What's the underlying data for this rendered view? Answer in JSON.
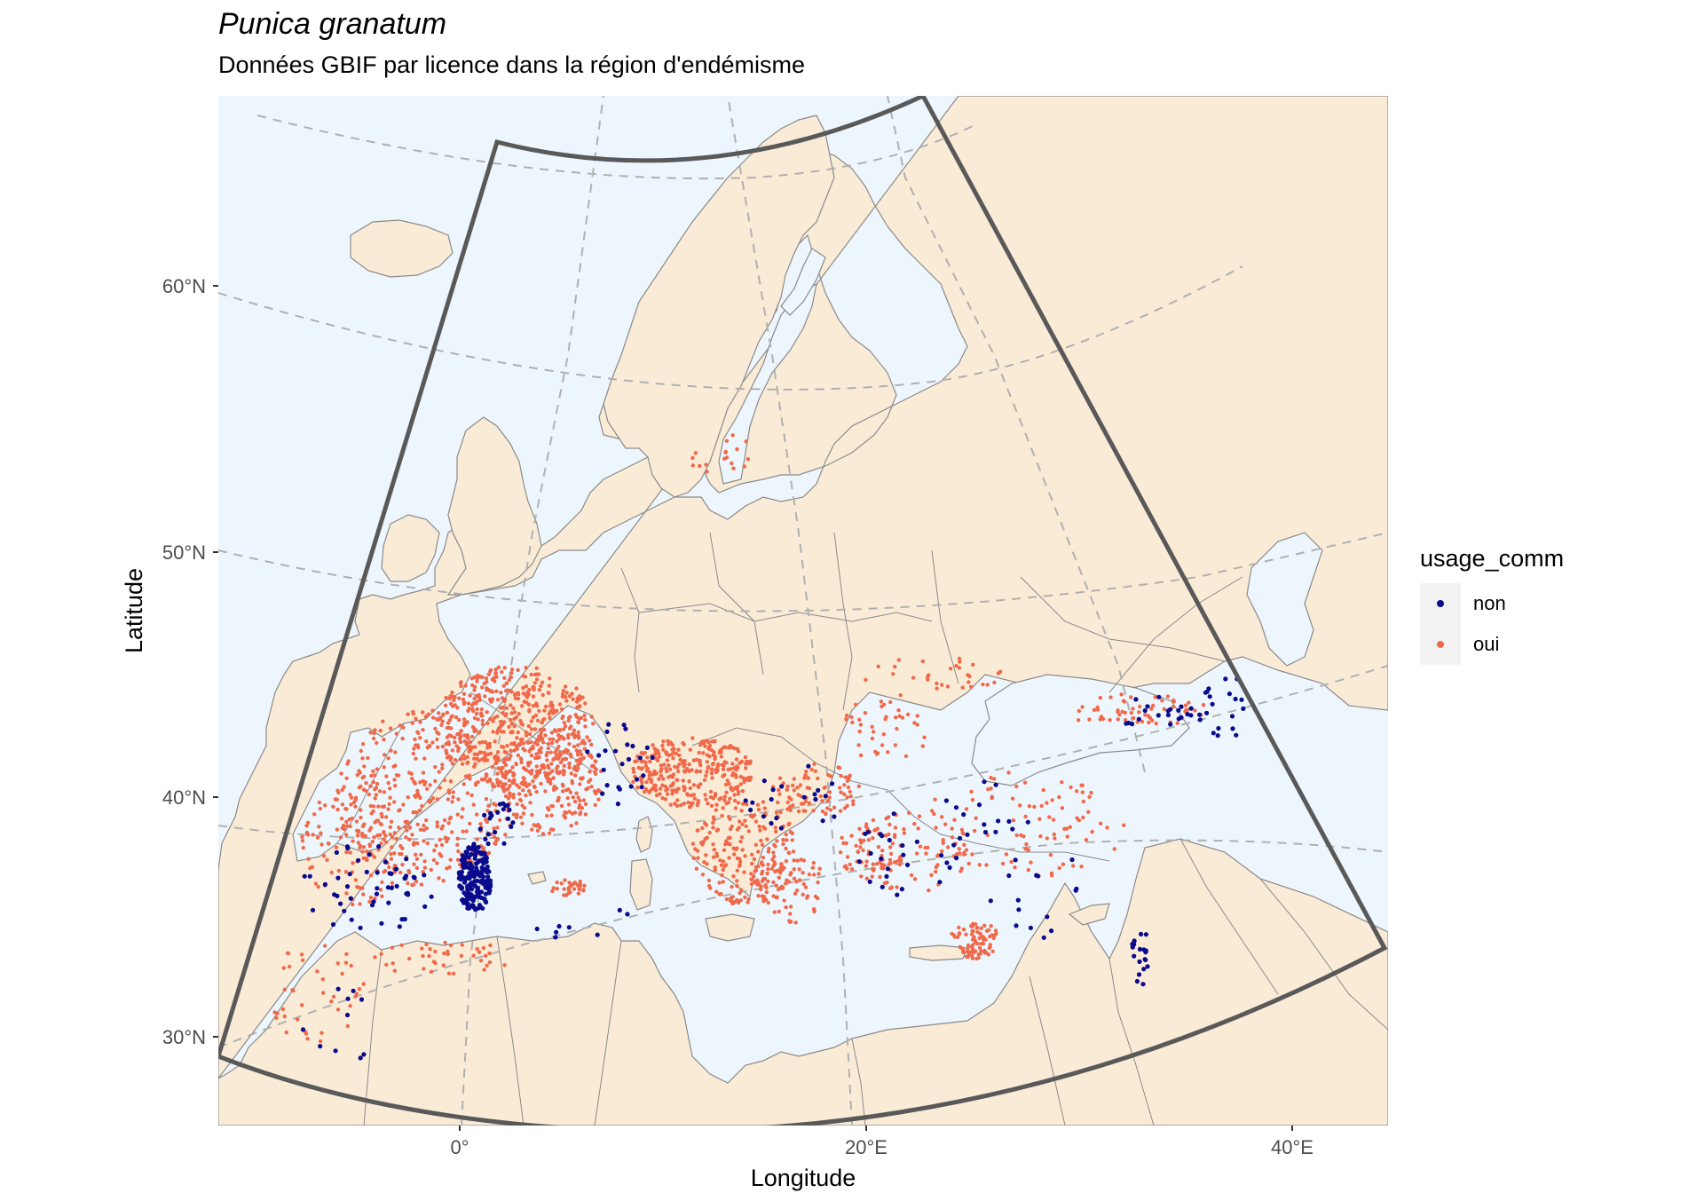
{
  "title": "Punica granatum",
  "subtitle": "Données GBIF par licence dans la région d'endémisme",
  "x_axis": {
    "title": "Longitude",
    "ticks": [
      "0°",
      "20°E",
      "40°E"
    ]
  },
  "y_axis": {
    "title": "Latitude",
    "ticks": [
      "30°N",
      "40°N",
      "50°N",
      "60°N"
    ]
  },
  "legend": {
    "title": "usage_comm",
    "items": [
      {
        "label": "non",
        "color": "#0a0a8c"
      },
      {
        "label": "oui",
        "color": "#f0694a"
      }
    ]
  },
  "colors": {
    "sea": "#eef6fd",
    "land": "#faebd7",
    "border": "#8a8a8a",
    "region_outline": "#595959",
    "graticule": "#b0b0b0"
  }
}
